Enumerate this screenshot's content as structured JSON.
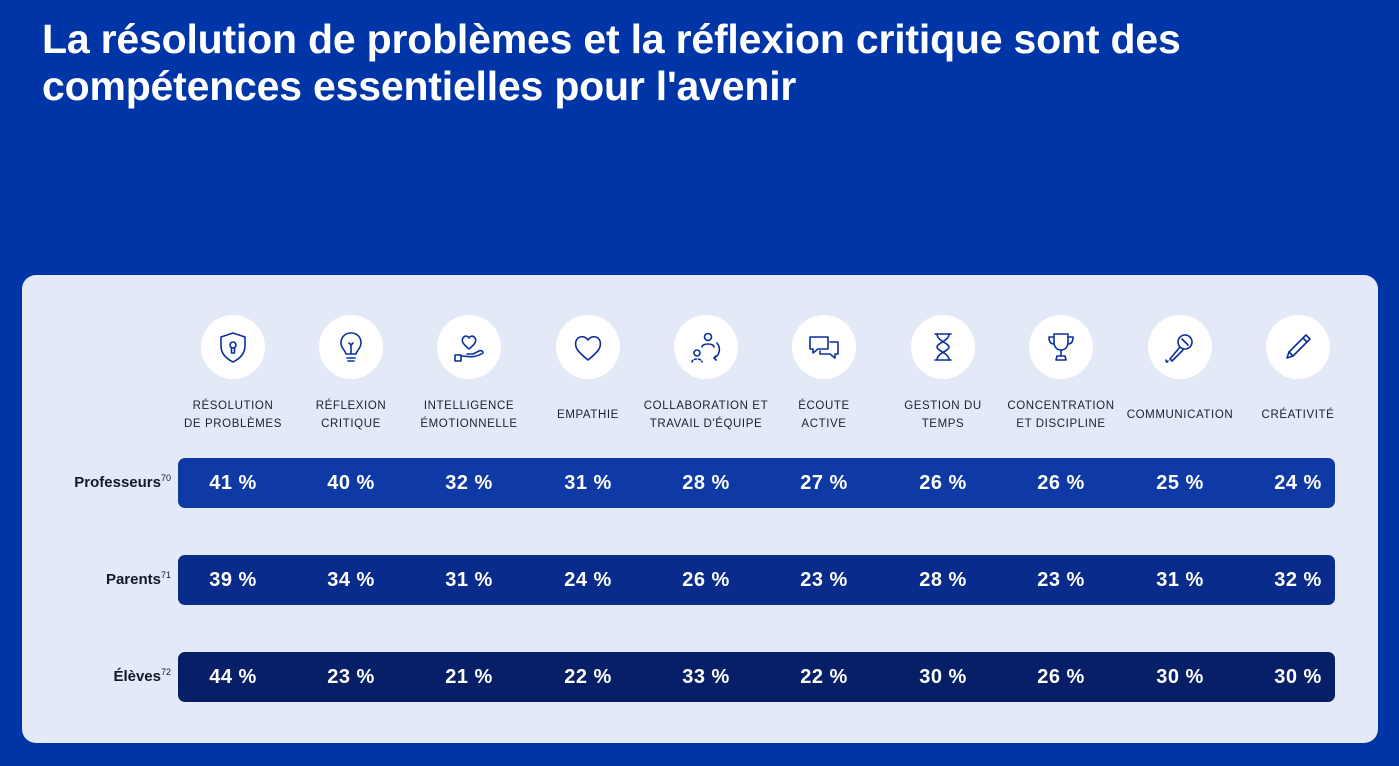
{
  "title": {
    "line1": "La résolution de problèmes et la réflexion critique sont des",
    "line2": "compétences essentielles pour l'avenir"
  },
  "colors": {
    "background": "#0035a8",
    "panel": "#e3e9f6",
    "row_professeurs": "#0f3aa6",
    "row_parents": "#092c8c",
    "row_eleves": "#061f66"
  },
  "chart_data": {
    "type": "table",
    "categories": [
      {
        "label": "RÉSOLUTION\nDE PROBLÈMES",
        "icon": "shield-lock-icon"
      },
      {
        "label": "RÉFLEXION\nCRITIQUE",
        "icon": "lightbulb-icon"
      },
      {
        "label": "INTELLIGENCE\nÉMOTIONNELLE",
        "icon": "hand-heart-icon"
      },
      {
        "label": "EMPATHIE",
        "icon": "heart-icon"
      },
      {
        "label": "COLLABORATION ET\nTRAVAIL D'ÉQUIPE",
        "icon": "people-cycle-icon"
      },
      {
        "label": "ÉCOUTE\nACTIVE",
        "icon": "chat-bubbles-icon"
      },
      {
        "label": "GESTION DU\nTEMPS",
        "icon": "hourglass-icon"
      },
      {
        "label": "CONCENTRATION\nET DISCIPLINE",
        "icon": "trophy-icon"
      },
      {
        "label": "COMMUNICATION",
        "icon": "microphone-icon"
      },
      {
        "label": "CRÉATIVITÉ",
        "icon": "pencil-icon"
      }
    ],
    "series": [
      {
        "name": "Professeurs",
        "note": "70",
        "values": [
          "41 %",
          "40 %",
          "32 %",
          "31 %",
          "28 %",
          "27 %",
          "26 %",
          "26 %",
          "25 %",
          "24 %"
        ]
      },
      {
        "name": "Parents",
        "note": "71",
        "values": [
          "39 %",
          "34 %",
          "31 %",
          "24 %",
          "26 %",
          "23 %",
          "28 %",
          "23 %",
          "31 %",
          "32 %"
        ]
      },
      {
        "name": "Élèves",
        "note": "72",
        "values": [
          "44 %",
          "23 %",
          "21 %",
          "22 %",
          "33 %",
          "22 %",
          "30 %",
          "26 %",
          "30 %",
          "30 %"
        ]
      }
    ]
  }
}
